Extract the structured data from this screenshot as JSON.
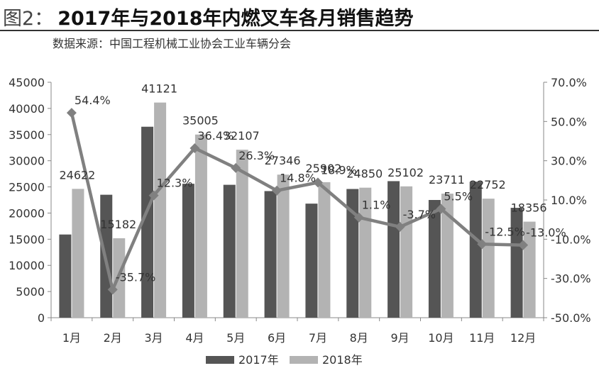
{
  "header": {
    "figure_label": "图2：",
    "title": "2017年与2018年内燃叉车各月销售趋势",
    "source": "数据来源：中国工程机械工业协会工业车辆分会"
  },
  "chart_data": {
    "type": "bar",
    "categories": [
      "1月",
      "2月",
      "3月",
      "4月",
      "5月",
      "6月",
      "7月",
      "8月",
      "9月",
      "10月",
      "11月",
      "12月"
    ],
    "series": [
      {
        "name": "2017年",
        "type": "bar",
        "color": "#555555",
        "values": [
          15900,
          23500,
          36500,
          25600,
          25400,
          24200,
          21800,
          24600,
          26100,
          22500,
          26000,
          21000
        ]
      },
      {
        "name": "2018年",
        "type": "bar",
        "color": "#b3b3b3",
        "values": [
          24622,
          15182,
          41121,
          35005,
          32107,
          27346,
          25902,
          24850,
          25102,
          23711,
          22752,
          18356
        ],
        "data_labels": [
          "24622",
          "15182",
          "41121",
          "35005",
          "32107",
          "27346",
          "25902",
          "24850",
          "25102",
          "23711",
          "22752",
          "18356"
        ]
      },
      {
        "type": "line",
        "axis": "right",
        "color": "#808080",
        "values": [
          54.4,
          -35.7,
          12.3,
          36.4,
          26.3,
          14.8,
          18.9,
          1.1,
          -3.7,
          5.5,
          -12.5,
          -13.0
        ],
        "data_labels": [
          "54.4%",
          "-35.7%",
          "12.3%",
          "36.4%",
          "26.3%",
          "14.8%",
          "18.9%",
          "1.1%",
          "-3.7%",
          "5.5%",
          "-12.5%",
          "-13.0%"
        ]
      }
    ],
    "y_left": {
      "min": 0,
      "max": 45000,
      "ticks": [
        "0",
        "5000",
        "10000",
        "15000",
        "20000",
        "25000",
        "30000",
        "35000",
        "40000",
        "45000"
      ]
    },
    "y_right": {
      "min": -50,
      "max": 70,
      "ticks": [
        "-50.0%",
        "-30.0%",
        "-10.0%",
        "10.0%",
        "30.0%",
        "50.0%",
        "70.0%"
      ]
    },
    "grid": false,
    "legend": {
      "position": "bottom",
      "entries": [
        "2017年",
        "2018年"
      ]
    }
  }
}
